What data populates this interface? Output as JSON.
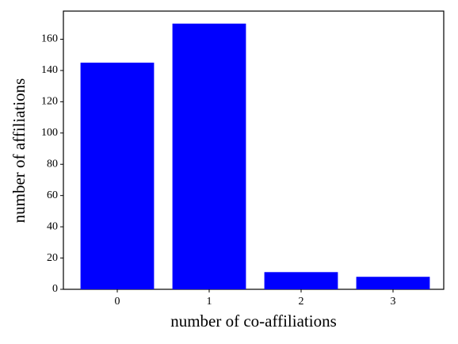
{
  "chart_data": {
    "type": "bar",
    "xlabel": "number of co-affiliations",
    "ylabel": "number of affiliations",
    "categories": [
      "0",
      "1",
      "2",
      "3"
    ],
    "values": [
      145,
      170,
      11,
      8
    ],
    "color": "#0000ff",
    "ylim": [
      0,
      178
    ],
    "yticks": [
      0,
      20,
      40,
      60,
      80,
      100,
      120,
      140,
      160
    ]
  }
}
